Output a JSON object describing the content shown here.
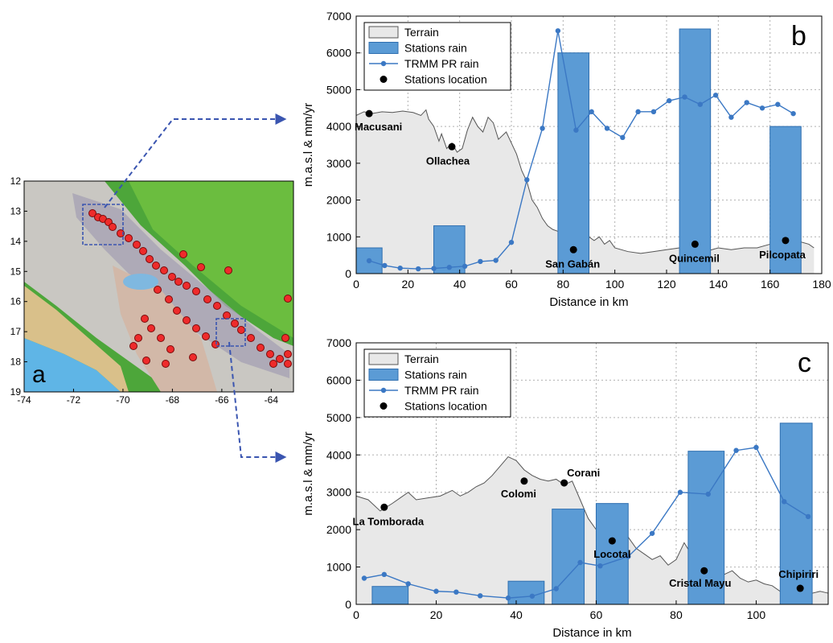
{
  "colors": {
    "terrain_fill": "#e8e8e8",
    "terrain_line": "#555555",
    "bar": "#5b9bd5",
    "bar_edge": "#2f6fb0",
    "trmm": "#3b78c4",
    "station": "#000000",
    "arrow": "#3a55b0",
    "grid": "#b0b0b0"
  },
  "map": {
    "panel_label": "a",
    "x_ticks": [
      "-74",
      "-72",
      "-70",
      "-68",
      "-66",
      "-64"
    ],
    "y_ticks": [
      "12",
      "13",
      "14",
      "15",
      "16",
      "17",
      "18",
      "19"
    ],
    "legend_icons": [
      "relief-map-icon",
      "station-marker-icon"
    ]
  },
  "chart_data": [
    {
      "type": "bar",
      "panel_label": "b",
      "xlabel": "Distance in km",
      "ylabel": "m.a.s.l & mm/yr",
      "xlim": [
        0,
        180
      ],
      "ylim": [
        0,
        7000
      ],
      "x_ticks": [
        0,
        20,
        40,
        60,
        80,
        100,
        120,
        140,
        160,
        180
      ],
      "y_ticks": [
        0,
        1000,
        2000,
        3000,
        4000,
        5000,
        6000,
        7000
      ],
      "grid": true,
      "legend": {
        "placement": "top-left",
        "entries": [
          "Terrain",
          "Stations rain",
          "TRMM PR rain",
          "Stations location"
        ]
      },
      "terrain": [
        [
          0,
          4300
        ],
        [
          3,
          4400
        ],
        [
          6,
          4350
        ],
        [
          10,
          4400
        ],
        [
          14,
          4380
        ],
        [
          18,
          4420
        ],
        [
          22,
          4380
        ],
        [
          25,
          4300
        ],
        [
          27,
          4450
        ],
        [
          28,
          4200
        ],
        [
          30,
          4000
        ],
        [
          32,
          3600
        ],
        [
          33,
          3800
        ],
        [
          35,
          3400
        ],
        [
          37,
          3550
        ],
        [
          39,
          3300
        ],
        [
          41,
          3400
        ],
        [
          43,
          3900
        ],
        [
          45,
          4250
        ],
        [
          47,
          4000
        ],
        [
          49,
          3850
        ],
        [
          51,
          4250
        ],
        [
          53,
          4100
        ],
        [
          55,
          3650
        ],
        [
          58,
          3850
        ],
        [
          60,
          3550
        ],
        [
          62,
          3250
        ],
        [
          64,
          2800
        ],
        [
          66,
          2500
        ],
        [
          68,
          2000
        ],
        [
          70,
          1800
        ],
        [
          72,
          1500
        ],
        [
          74,
          1300
        ],
        [
          76,
          1200
        ],
        [
          78,
          1150
        ],
        [
          80,
          1050
        ],
        [
          82,
          950
        ],
        [
          84,
          700
        ],
        [
          86,
          1100
        ],
        [
          88,
          800
        ],
        [
          90,
          1000
        ],
        [
          92,
          900
        ],
        [
          94,
          1000
        ],
        [
          96,
          800
        ],
        [
          98,
          900
        ],
        [
          100,
          700
        ],
        [
          105,
          600
        ],
        [
          110,
          550
        ],
        [
          115,
          600
        ],
        [
          120,
          650
        ],
        [
          125,
          700
        ],
        [
          130,
          750
        ],
        [
          135,
          600
        ],
        [
          140,
          700
        ],
        [
          145,
          650
        ],
        [
          150,
          700
        ],
        [
          155,
          700
        ],
        [
          160,
          800
        ],
        [
          165,
          950
        ],
        [
          170,
          900
        ],
        [
          175,
          800
        ],
        [
          177,
          700
        ]
      ],
      "station_rain": [
        {
          "x0": 0,
          "x1": 10,
          "value": 700
        },
        {
          "x0": 30,
          "x1": 42,
          "value": 1300
        },
        {
          "x0": 78,
          "x1": 90,
          "value": 6000
        },
        {
          "x0": 125,
          "x1": 137,
          "value": 6650
        },
        {
          "x0": 160,
          "x1": 172,
          "value": 4000
        }
      ],
      "trmm": [
        [
          5,
          350
        ],
        [
          11,
          220
        ],
        [
          17,
          150
        ],
        [
          24,
          130
        ],
        [
          30,
          140
        ],
        [
          36,
          170
        ],
        [
          42,
          200
        ],
        [
          48,
          330
        ],
        [
          54,
          360
        ],
        [
          60,
          850
        ],
        [
          66,
          2550
        ],
        [
          72,
          3950
        ],
        [
          78,
          6600
        ],
        [
          85,
          3900
        ],
        [
          91,
          4400
        ],
        [
          97,
          3950
        ],
        [
          103,
          3700
        ],
        [
          109,
          4400
        ],
        [
          115,
          4400
        ],
        [
          121,
          4700
        ],
        [
          127,
          4800
        ],
        [
          133,
          4600
        ],
        [
          139,
          4850
        ],
        [
          145,
          4250
        ],
        [
          151,
          4650
        ],
        [
          157,
          4500
        ],
        [
          163,
          4600
        ],
        [
          169,
          4350
        ]
      ],
      "stations": [
        {
          "name": "Macusani",
          "x": 5,
          "y": 4350
        },
        {
          "name": "Ollachea",
          "x": 37,
          "y": 3450
        },
        {
          "name": "San Gabán",
          "x": 84,
          "y": 650
        },
        {
          "name": "Quincemil",
          "x": 131,
          "y": 800
        },
        {
          "name": "Pilcopata",
          "x": 166,
          "y": 900
        }
      ]
    },
    {
      "type": "bar",
      "panel_label": "c",
      "xlabel": "Distance in km",
      "ylabel": "m.a.s.l & mm/yr",
      "xlim": [
        0,
        118
      ],
      "ylim": [
        0,
        7000
      ],
      "x_ticks": [
        0,
        20,
        40,
        60,
        80,
        100
      ],
      "y_ticks": [
        0,
        1000,
        2000,
        3000,
        4000,
        5000,
        6000,
        7000
      ],
      "grid": true,
      "legend": {
        "placement": "top-left",
        "entries": [
          "Terrain",
          "Stations rain",
          "TRMM PR rain",
          "Stations location"
        ]
      },
      "terrain": [
        [
          0,
          2900
        ],
        [
          3,
          2800
        ],
        [
          6,
          2500
        ],
        [
          9,
          2700
        ],
        [
          11,
          2850
        ],
        [
          13,
          3000
        ],
        [
          15,
          2800
        ],
        [
          18,
          2850
        ],
        [
          21,
          2900
        ],
        [
          24,
          3050
        ],
        [
          26,
          2900
        ],
        [
          28,
          3000
        ],
        [
          30,
          3150
        ],
        [
          32,
          3250
        ],
        [
          34,
          3450
        ],
        [
          36,
          3700
        ],
        [
          38,
          3950
        ],
        [
          40,
          3850
        ],
        [
          42,
          3600
        ],
        [
          44,
          3450
        ],
        [
          46,
          3350
        ],
        [
          48,
          3300
        ],
        [
          50,
          3350
        ],
        [
          52,
          3200
        ],
        [
          54,
          3300
        ],
        [
          56,
          2800
        ],
        [
          58,
          2300
        ],
        [
          60,
          2000
        ],
        [
          62,
          2200
        ],
        [
          64,
          1700
        ],
        [
          66,
          2100
        ],
        [
          68,
          1800
        ],
        [
          70,
          1500
        ],
        [
          72,
          1350
        ],
        [
          74,
          1200
        ],
        [
          76,
          1300
        ],
        [
          78,
          1050
        ],
        [
          80,
          1200
        ],
        [
          82,
          1650
        ],
        [
          84,
          1300
        ],
        [
          86,
          1100
        ],
        [
          88,
          1000
        ],
        [
          90,
          900
        ],
        [
          92,
          800
        ],
        [
          94,
          900
        ],
        [
          96,
          700
        ],
        [
          98,
          600
        ],
        [
          100,
          650
        ],
        [
          102,
          550
        ],
        [
          104,
          500
        ],
        [
          106,
          350
        ],
        [
          108,
          450
        ],
        [
          110,
          400
        ],
        [
          112,
          350
        ],
        [
          114,
          300
        ],
        [
          116,
          350
        ],
        [
          118,
          300
        ]
      ],
      "station_rain": [
        {
          "x0": 4,
          "x1": 13,
          "value": 480
        },
        {
          "x0": 38,
          "x1": 47,
          "value": 620
        },
        {
          "x0": 49,
          "x1": 57,
          "value": 2550
        },
        {
          "x0": 60,
          "x1": 68,
          "value": 2700
        },
        {
          "x0": 83,
          "x1": 92,
          "value": 4100
        },
        {
          "x0": 106,
          "x1": 114,
          "value": 4850
        }
      ],
      "trmm": [
        [
          2,
          700
        ],
        [
          7,
          800
        ],
        [
          13,
          550
        ],
        [
          20,
          350
        ],
        [
          25,
          330
        ],
        [
          31,
          230
        ],
        [
          38,
          170
        ],
        [
          44,
          220
        ],
        [
          50,
          420
        ],
        [
          56,
          1120
        ],
        [
          61,
          1030
        ],
        [
          68,
          1280
        ],
        [
          74,
          1900
        ],
        [
          81,
          3000
        ],
        [
          88,
          2950
        ],
        [
          95,
          4120
        ],
        [
          100,
          4200
        ],
        [
          107,
          2750
        ],
        [
          113,
          2350
        ]
      ],
      "stations": [
        {
          "name": "La Tomborada",
          "x": 7,
          "y": 2600
        },
        {
          "name": "Colomi",
          "x": 42,
          "y": 3300
        },
        {
          "name": "Corani",
          "x": 52,
          "y": 3250
        },
        {
          "name": "Locotal",
          "x": 64,
          "y": 1700
        },
        {
          "name": "Cristal Mayu",
          "x": 87,
          "y": 900
        },
        {
          "name": "Chipiriri",
          "x": 111,
          "y": 430
        }
      ]
    }
  ]
}
